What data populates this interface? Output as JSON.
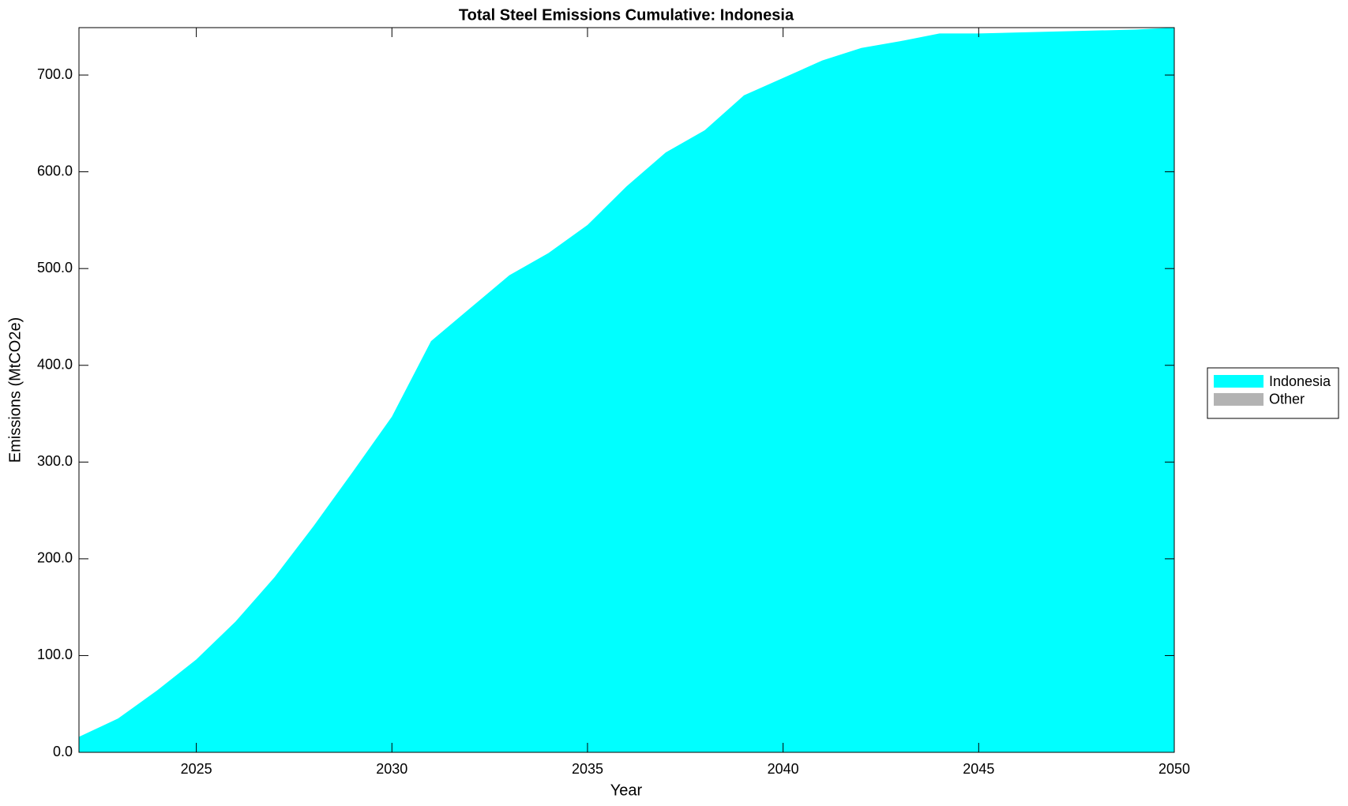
{
  "chart_data": {
    "type": "stacked_area",
    "title": "Total Steel Emissions Cumulative: Indonesia",
    "x_label": "Year",
    "y_label": "Emissions (MtCO2e)",
    "x": [
      2022,
      2023,
      2024,
      2025,
      2026,
      2027,
      2028,
      2029,
      2030,
      2031,
      2032,
      2033,
      2034,
      2035,
      2036,
      2037,
      2038,
      2039,
      2040,
      2041,
      2042,
      2043,
      2044,
      2045,
      2046,
      2047,
      2048,
      2049,
      2050
    ],
    "series": [
      {
        "name": "Indonesia",
        "color": "#00ffff",
        "values": [
          16,
          35,
          64,
          96,
          135,
          181,
          234,
          290,
          347,
          425,
          459,
          493,
          516,
          545,
          585,
          620,
          643,
          679,
          697,
          715,
          728,
          735,
          743,
          743,
          744,
          745,
          746,
          747,
          749
        ]
      },
      {
        "name": "Other",
        "color": "#b3b3b3",
        "values": [
          0,
          0,
          0,
          0,
          0,
          0,
          0,
          0,
          0,
          0,
          0,
          0,
          0,
          0,
          0,
          0,
          0,
          0,
          0,
          0,
          0,
          0,
          0,
          0,
          0,
          0,
          0,
          0,
          0
        ]
      }
    ],
    "xlim": [
      2022,
      2050
    ],
    "xticks": [
      2025,
      2030,
      2035,
      2040,
      2045,
      2050
    ],
    "ylim": [
      0,
      749
    ],
    "yticks": [
      {
        "value": 0,
        "label": "0.0"
      },
      {
        "value": 100,
        "label": "100.0"
      },
      {
        "value": 200,
        "label": "200.0"
      },
      {
        "value": 300,
        "label": "300.0"
      },
      {
        "value": 400,
        "label": "400.0"
      },
      {
        "value": 500,
        "label": "500.0"
      },
      {
        "value": 600,
        "label": "600.0"
      },
      {
        "value": 700,
        "label": "700.0"
      }
    ],
    "legend": "right"
  }
}
